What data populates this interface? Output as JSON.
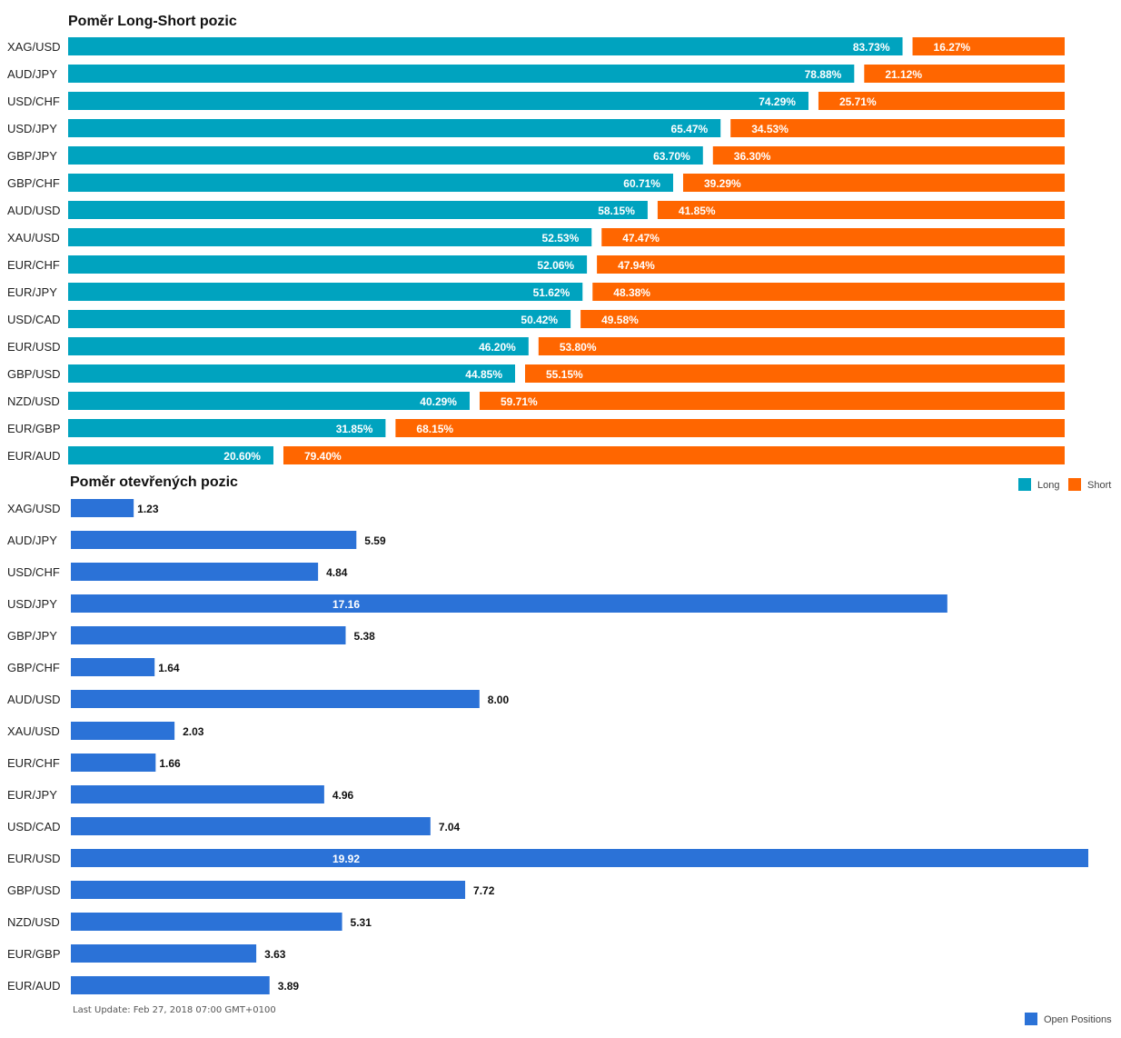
{
  "chart_data": [
    {
      "type": "bar",
      "title": "Poměr Long-Short pozic",
      "categories": [
        "XAG/USD",
        "AUD/JPY",
        "USD/CHF",
        "USD/JPY",
        "GBP/JPY",
        "GBP/CHF",
        "AUD/USD",
        "XAU/USD",
        "EUR/CHF",
        "EUR/JPY",
        "USD/CAD",
        "EUR/USD",
        "GBP/USD",
        "NZD/USD",
        "EUR/GBP",
        "EUR/AUD"
      ],
      "series": [
        {
          "name": "Long",
          "color": "#00a3bf",
          "values": [
            83.73,
            78.88,
            74.29,
            65.47,
            63.7,
            60.71,
            58.15,
            52.53,
            52.06,
            51.62,
            50.42,
            46.2,
            44.85,
            40.29,
            31.85,
            20.6
          ]
        },
        {
          "name": "Short",
          "color": "#ff6600",
          "values": [
            16.27,
            21.12,
            25.71,
            34.53,
            36.3,
            39.29,
            41.85,
            47.47,
            47.94,
            48.38,
            49.58,
            53.8,
            55.15,
            59.71,
            68.15,
            79.4
          ]
        }
      ],
      "value_suffix": "%",
      "legend_position": "bottom-right",
      "grid": false
    },
    {
      "type": "bar",
      "title": "Poměr otevřených pozic",
      "categories": [
        "XAG/USD",
        "AUD/JPY",
        "USD/CHF",
        "USD/JPY",
        "GBP/JPY",
        "GBP/CHF",
        "AUD/USD",
        "XAU/USD",
        "EUR/CHF",
        "EUR/JPY",
        "USD/CAD",
        "EUR/USD",
        "GBP/USD",
        "NZD/USD",
        "EUR/GBP",
        "EUR/AUD"
      ],
      "series": [
        {
          "name": "Open Positions",
          "color": "#2b72d7",
          "values": [
            1.23,
            5.59,
            4.84,
            17.16,
            5.38,
            1.64,
            8.0,
            2.03,
            1.66,
            4.96,
            7.04,
            19.92,
            7.72,
            5.31,
            3.63,
            3.89
          ]
        }
      ],
      "value_max": 19.92,
      "legend_position": "bottom-right",
      "grid": false
    }
  ],
  "footer": {
    "last_update": "Last Update: Feb 27, 2018 07:00 GMT+0100"
  }
}
